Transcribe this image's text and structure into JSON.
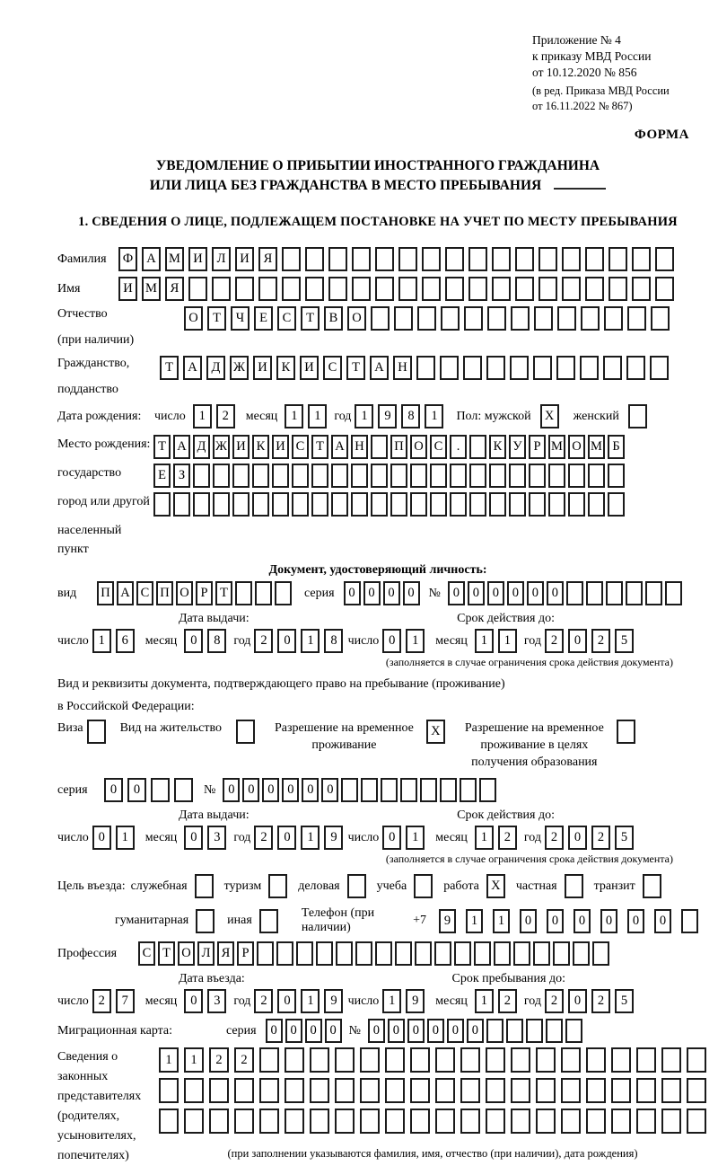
{
  "colors": {
    "ink": "#000000",
    "box_border": "#1b1b1b",
    "page_bg": "#ffffff"
  },
  "marks": {
    "checked": "X"
  },
  "header": {
    "appendix_lines": [
      "Приложение № 4",
      "к приказу МВД России",
      "от 10.12.2020 № 856"
    ],
    "amendment_lines": [
      "(в ред. Приказа МВД России",
      "от 16.11.2022 № 867)"
    ],
    "form_label": "ФОРМА",
    "title_line1": "УВЕДОМЛЕНИЕ О ПРИБЫТИИ ИНОСТРАННОГО ГРАЖДАНИНА",
    "title_line2": "ИЛИ ЛИЦА БЕЗ ГРАЖДАНСТВА В МЕСТО ПРЕБЫВАНИЯ",
    "section1_title": "1. СВЕДЕНИЯ О ЛИЦЕ, ПОДЛЕЖАЩЕМ ПОСТАНОВКЕ НА УЧЕТ ПО МЕСТУ ПРЕБЫВАНИЯ"
  },
  "person": {
    "surname": {
      "label": "Фамилия",
      "value": "ФАМИЛИЯ",
      "len": 24
    },
    "given_name": {
      "label": "Имя",
      "value": "ИМЯ",
      "len": 24
    },
    "patronymic": {
      "label_line1": "Отчество",
      "label_line2": "(при наличии)",
      "value": "ОТЧЕСТВО",
      "len": 21
    },
    "citizenship": {
      "label_line1": "Гражданство,",
      "label_line2": "подданство",
      "value": "ТАДЖИКИСТАН",
      "len": 22
    },
    "birth_date": {
      "label": "Дата рождения:",
      "day_label": "число",
      "day": {
        "value": "12",
        "len": 2
      },
      "month_label": "месяц",
      "month": {
        "value": "11",
        "len": 2
      },
      "year_label": "год",
      "year": {
        "value": "1981",
        "len": 4
      },
      "sex_label": "Пол: мужской",
      "male_checked": true,
      "female_label": "женский",
      "female_checked": false
    },
    "birth_place": {
      "label_lines": [
        "Место рождения:",
        "государство",
        "город или другой",
        "населенный пункт"
      ],
      "row1": {
        "value": "ТАДЖИКИСТАН ПОС. КУРМОМБ",
        "len": 24
      },
      "row2": {
        "value": "ЕЗ",
        "len": 24
      },
      "row3": {
        "value": "",
        "len": 24
      }
    }
  },
  "identity_doc": {
    "heading": "Документ, удостоверяющий личность:",
    "kind_label": "вид",
    "kind": {
      "value": "ПАСПОРТ",
      "len": 10
    },
    "series_label": "серия",
    "series": {
      "value": "0000",
      "len": 4
    },
    "number_label": "№",
    "number": {
      "value": "000000",
      "len": 12
    },
    "issue_label": "Дата выдачи:",
    "issue": {
      "day_label": "число",
      "day": {
        "value": "16",
        "len": 2
      },
      "month_label": "месяц",
      "month": {
        "value": "08",
        "len": 2
      },
      "year_label": "год",
      "year": {
        "value": "2018",
        "len": 4
      }
    },
    "expiry_label": "Срок действия до:",
    "expiry": {
      "day_label": "число",
      "day": {
        "value": "01",
        "len": 2
      },
      "month_label": "месяц",
      "month": {
        "value": "11",
        "len": 2
      },
      "year_label": "год",
      "year": {
        "value": "2025",
        "len": 4
      }
    },
    "expiry_note": "(заполняется в случае ограничения срока действия документа)"
  },
  "residence_doc": {
    "intro_line1": "Вид и реквизиты документа, подтверждающего право на пребывание (проживание)",
    "intro_line2": "в Российской Федерации:",
    "options": [
      {
        "label_lines": [
          "Виза"
        ],
        "checked": false
      },
      {
        "label_lines": [
          "Вид на жительство"
        ],
        "checked": false
      },
      {
        "label_lines": [
          "Разрешение на временное",
          "проживание"
        ],
        "checked": true
      },
      {
        "label_lines": [
          "Разрешение на временное",
          "проживание в целях",
          "получения образования"
        ],
        "checked": false
      }
    ],
    "series_label": "серия",
    "series": {
      "value": "00",
      "len": 4
    },
    "number_label": "№",
    "number": {
      "value": "000000",
      "len": 14
    },
    "issue_label": "Дата выдачи:",
    "issue": {
      "day_label": "число",
      "day": {
        "value": "01",
        "len": 2
      },
      "month_label": "месяц",
      "month": {
        "value": "03",
        "len": 2
      },
      "year_label": "год",
      "year": {
        "value": "2019",
        "len": 4
      }
    },
    "expiry_label": "Срок действия до:",
    "expiry": {
      "day_label": "число",
      "day": {
        "value": "01",
        "len": 2
      },
      "month_label": "месяц",
      "month": {
        "value": "12",
        "len": 2
      },
      "year_label": "год",
      "year": {
        "value": "2025",
        "len": 4
      }
    },
    "expiry_note": "(заполняется в случае ограничения срока действия документа)"
  },
  "visit": {
    "purpose_label": "Цель въезда:",
    "purposes": [
      {
        "label": "служебная",
        "checked": false
      },
      {
        "label": "туризм",
        "checked": false
      },
      {
        "label": "деловая",
        "checked": false
      },
      {
        "label": "учеба",
        "checked": false
      },
      {
        "label": "работа",
        "checked": true
      },
      {
        "label": "частная",
        "checked": false
      },
      {
        "label": "транзит",
        "checked": false
      }
    ],
    "purposes2": [
      {
        "label": "гуманитарная",
        "checked": false
      },
      {
        "label": "иная",
        "checked": false
      }
    ],
    "phone_label": "Телефон (при наличии)",
    "phone_prefix": "+7",
    "phone": {
      "value": "911000000",
      "len": 10
    },
    "profession_label": "Профессия",
    "profession": {
      "value": "СТОЛЯР",
      "len": 24
    },
    "entry_label": "Дата въезда:",
    "entry": {
      "day_label": "число",
      "day": {
        "value": "27",
        "len": 2
      },
      "month_label": "месяц",
      "month": {
        "value": "03",
        "len": 2
      },
      "year_label": "год",
      "year": {
        "value": "2019",
        "len": 4
      }
    },
    "stay_label": "Срок пребывания до:",
    "stay": {
      "day_label": "число",
      "day": {
        "value": "19",
        "len": 2
      },
      "month_label": "месяц",
      "month": {
        "value": "12",
        "len": 2
      },
      "year_label": "год",
      "year": {
        "value": "2025",
        "len": 4
      }
    },
    "migration_card_label": "Миграционная карта:",
    "mc_series_label": "серия",
    "mc_series": {
      "value": "0000",
      "len": 4
    },
    "mc_number_label": "№",
    "mc_number": {
      "value": "000000",
      "len": 11
    }
  },
  "representatives": {
    "label_lines": [
      "Сведения о",
      "законных",
      "представителях",
      "(родителях,",
      "усыновителях,",
      "попечителях)"
    ],
    "row1": {
      "value": "1122",
      "len": 22
    },
    "row2": {
      "value": "",
      "len": 22
    },
    "row3": {
      "value": "",
      "len": 22
    },
    "note": "(при заполнении указываются фамилия, имя, отчество (при наличии), дата рождения)"
  }
}
